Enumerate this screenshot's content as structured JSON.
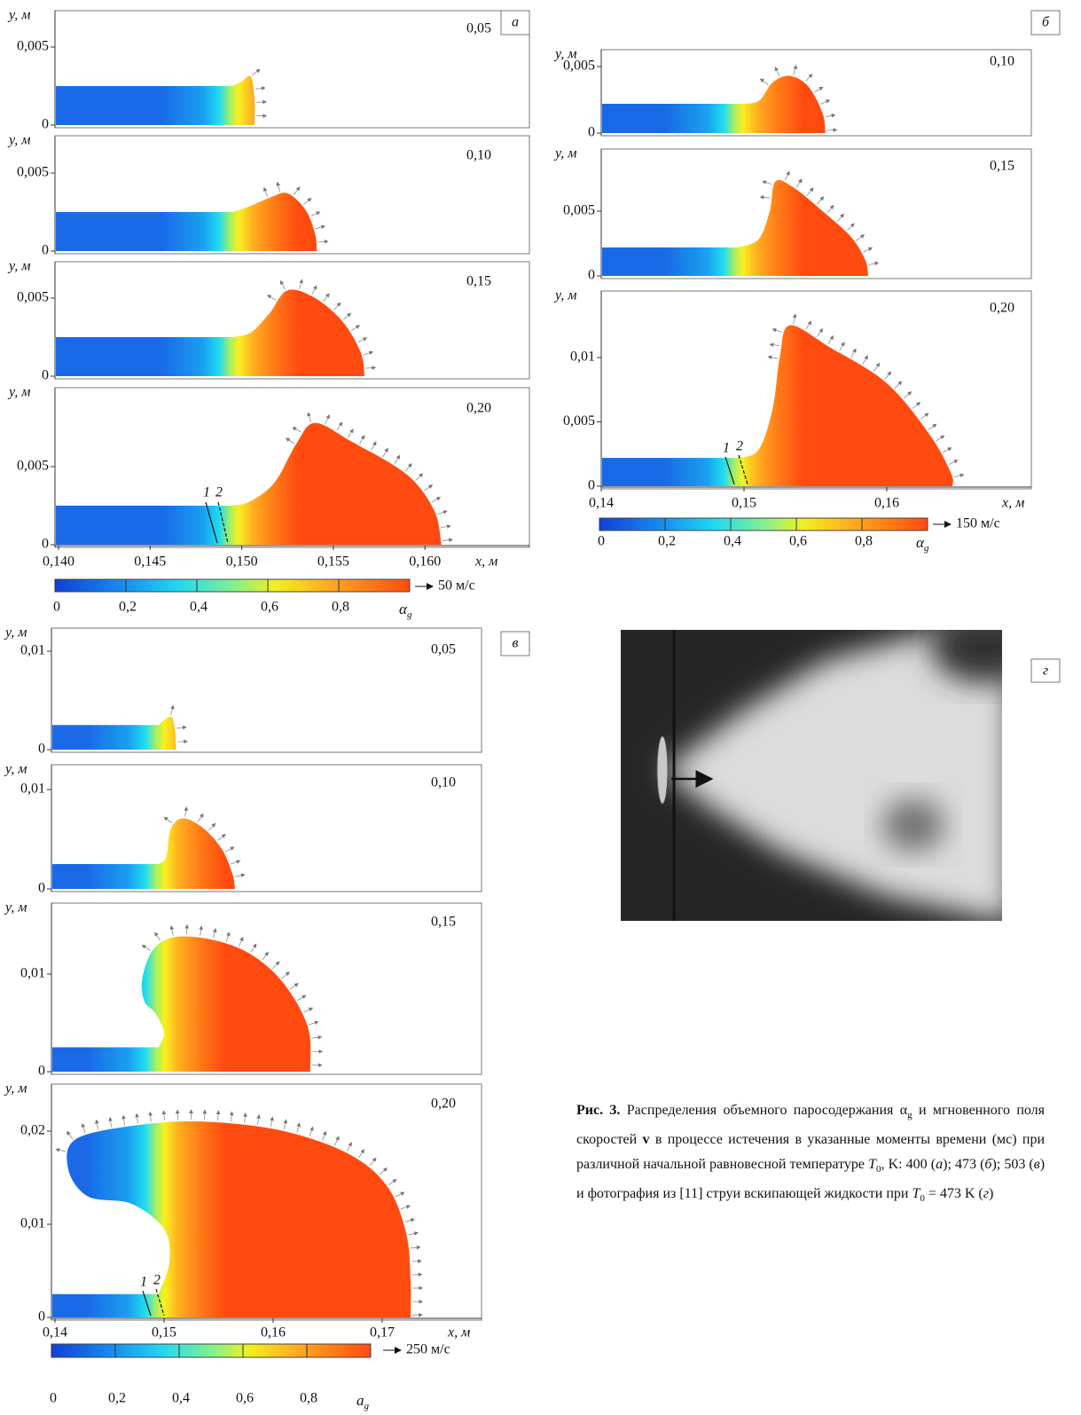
{
  "panels": [
    {
      "letter": "а",
      "x_label": "x, м",
      "xticks": [
        {
          "value": 0.14,
          "label": "0,140"
        },
        {
          "value": 0.145,
          "label": "0,145"
        },
        {
          "value": 0.15,
          "label": "0,150"
        },
        {
          "value": 0.155,
          "label": "0,155"
        },
        {
          "value": 0.16,
          "label": "0,160"
        }
      ],
      "subplots": [
        {
          "time": "0,05",
          "y_label": "y, м",
          "yticks": [
            0,
            {
              "value": 0.005,
              "label": "0,005"
            }
          ]
        },
        {
          "time": "0,10",
          "y_label": "y, м",
          "yticks": [
            0,
            {
              "value": 0.005,
              "label": "0,005"
            }
          ]
        },
        {
          "time": "0,15",
          "y_label": "y, м",
          "yticks": [
            0,
            {
              "value": 0.005,
              "label": "0,005"
            }
          ]
        },
        {
          "time": "0,20",
          "y_label": "y, м",
          "yticks": [
            0,
            {
              "value": 0.005,
              "label": "0,005"
            }
          ]
        }
      ],
      "markers": [
        "1",
        "2"
      ],
      "colorbar": {
        "ticks": [
          0,
          {
            "value": 0.2,
            "label": "0,2"
          },
          {
            "value": 0.4,
            "label": "0,4"
          },
          {
            "value": 0.6,
            "label": "0,6"
          },
          {
            "value": 0.8,
            "label": "0,8"
          }
        ],
        "label": "α",
        "label_sub": "g",
        "scale": "50 м/с"
      }
    },
    {
      "letter": "б",
      "x_label": "x, м",
      "xticks": [
        {
          "value": 0.14,
          "label": "0,14"
        },
        {
          "value": 0.15,
          "label": "0,15"
        },
        {
          "value": 0.16,
          "label": "0,16"
        }
      ],
      "subplots": [
        {
          "time": "0,10",
          "y_label": "y, м",
          "yticks": [
            0,
            {
              "value": 0.005,
              "label": "0,005"
            }
          ]
        },
        {
          "time": "0,15",
          "y_label": "y, м",
          "yticks": [
            0,
            {
              "value": 0.005,
              "label": "0,005"
            }
          ]
        },
        {
          "time": "0,20",
          "y_label": "y, м",
          "yticks": [
            0,
            {
              "value": 0.005,
              "label": "0,005"
            },
            {
              "value": 0.01,
              "label": "0,01"
            }
          ]
        }
      ],
      "markers": [
        "1",
        "2"
      ],
      "colorbar": {
        "ticks": [
          0,
          {
            "value": 0.2,
            "label": "0,2"
          },
          {
            "value": 0.4,
            "label": "0,4"
          },
          {
            "value": 0.6,
            "label": "0,6"
          },
          {
            "value": 0.8,
            "label": "0,8"
          }
        ],
        "label": "α",
        "label_sub": "g",
        "scale": "150 м/с"
      }
    },
    {
      "letter": "в",
      "x_label": "x, м",
      "xticks": [
        {
          "value": 0.14,
          "label": "0,14"
        },
        {
          "value": 0.15,
          "label": "0,15"
        },
        {
          "value": 0.16,
          "label": "0,16"
        },
        {
          "value": 0.17,
          "label": "0,17"
        }
      ],
      "subplots": [
        {
          "time": "0,05",
          "y_label": "y, м",
          "yticks": [
            0,
            {
              "value": 0.01,
              "label": "0,01"
            }
          ]
        },
        {
          "time": "0,10",
          "y_label": "y, м",
          "yticks": [
            0,
            {
              "value": 0.01,
              "label": "0,01"
            }
          ]
        },
        {
          "time": "0,15",
          "y_label": "y, м",
          "yticks": [
            0,
            {
              "value": 0.01,
              "label": "0,01"
            }
          ]
        },
        {
          "time": "0,20",
          "y_label": "y, м",
          "yticks": [
            0,
            {
              "value": 0.01,
              "label": "0,01"
            },
            {
              "value": 0.02,
              "label": "0,02"
            }
          ]
        }
      ],
      "markers": [
        "1",
        "2"
      ],
      "colorbar": {
        "ticks": [
          0,
          {
            "value": 0.2,
            "label": "0,2"
          },
          {
            "value": 0.4,
            "label": "0,4"
          },
          {
            "value": 0.6,
            "label": "0,6"
          },
          {
            "value": 0.8,
            "label": "0,8"
          }
        ],
        "label": "a",
        "label_sub": "g",
        "scale": "250 м/с"
      }
    }
  ],
  "photo": {
    "letter": "г"
  },
  "caption": {
    "parts": [
      "Рис. 3.",
      " Распределения объемного паросодержания ",
      "α",
      "g",
      " и мгновенного поля скоростей ",
      "v",
      " в процессе истечения в указанные моменты времени (мс) при различной начальной равновесной температуре ",
      "T",
      "0",
      ", K: 400 (",
      "а",
      "); 473 (",
      "б",
      "); 503 (",
      "в",
      ") и фотография из [11] струи вскипающей жидкости при ",
      "T",
      "0",
      " = 473 K (",
      "г",
      ")"
    ]
  }
}
